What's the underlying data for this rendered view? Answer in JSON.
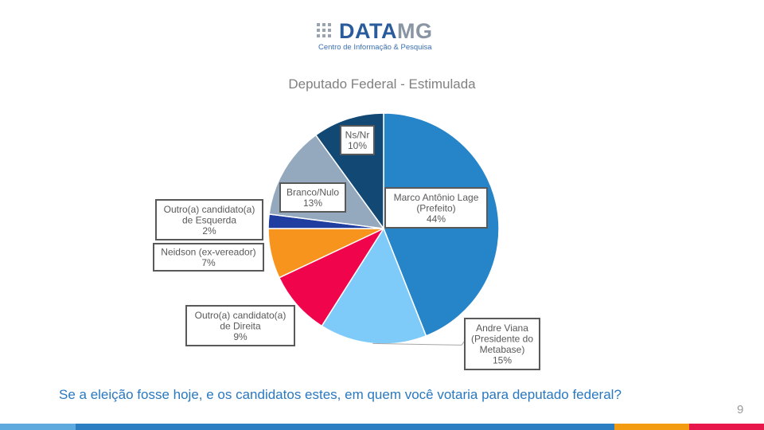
{
  "logo": {
    "part1": "DATA",
    "part2": "MG",
    "subtitle": "Centro de Informação & Pesquisa"
  },
  "question": "Se a eleição fosse hoje, e os candidatos estes, em quem você votaria para deputado federal?",
  "page_number": "9",
  "colors": {
    "bar": [
      "#5ea9dd",
      "#2b7ec1",
      "#f39c12",
      "#e8174b"
    ]
  },
  "chart_data": {
    "type": "pie",
    "title": "Deputado Federal - Estimulada",
    "slices": [
      {
        "label": [
          "Marco Antônio Lage",
          "(Prefeito)"
        ],
        "value": 44,
        "value_label": "44%",
        "color": "#2684c8"
      },
      {
        "label": [
          "Andre Viana",
          "(Presidente do",
          "Metabase)"
        ],
        "value": 15,
        "value_label": "15%",
        "color": "#7ecbfa"
      },
      {
        "label": [
          "Outro(a) candidato(a)",
          "de Direita"
        ],
        "value": 9,
        "value_label": "9%",
        "color": "#f0054d"
      },
      {
        "label": [
          "Neidson (ex-vereador)"
        ],
        "value": 7,
        "value_label": "7%",
        "color": "#f7941d"
      },
      {
        "label": [
          "Outro(a) candidato(a)",
          "de Esquerda"
        ],
        "value": 2,
        "value_label": "2%",
        "color": "#1f3ea0"
      },
      {
        "label": [
          "Branco/Nulo"
        ],
        "value": 13,
        "value_label": "13%",
        "color": "#94a9be"
      },
      {
        "label": [
          "Ns/Nr"
        ],
        "value": 10,
        "value_label": "10%",
        "color": "#124874"
      }
    ]
  }
}
